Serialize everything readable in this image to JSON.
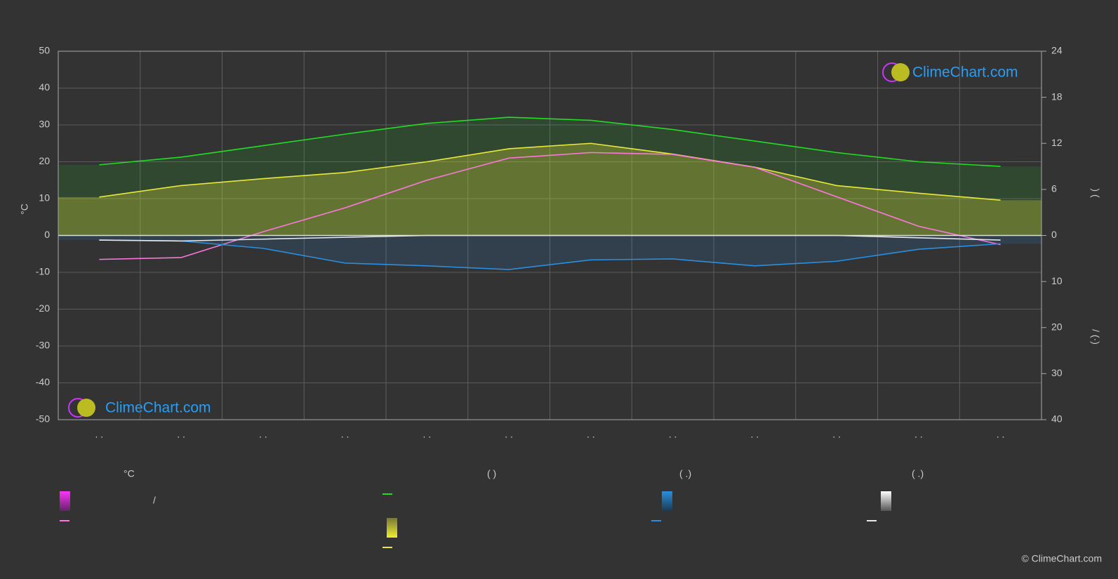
{
  "chart_data": {
    "type": "line",
    "y_label": "°C",
    "y2_label": ")        (",
    "y3_label": "/      (·)",
    "categories": [
      ". .",
      ". .",
      ". .",
      ". .",
      ". .",
      ". .",
      ". .",
      ". .",
      ". .",
      ". .",
      ". .",
      ". ."
    ],
    "ylim": [
      -50,
      50
    ],
    "yticks": [
      -50,
      -40,
      -30,
      -20,
      -10,
      0,
      10,
      20,
      30,
      40,
      50
    ],
    "y2lim": [
      0,
      24
    ],
    "y2ticks": [
      0,
      6,
      12,
      18,
      24
    ],
    "y3lim": [
      0,
      40
    ],
    "y3ticks": [
      10,
      20,
      30,
      40
    ],
    "grid": true,
    "series": [
      {
        "color": "#22dd22",
        "axis": "y2",
        "values": [
          9.2,
          10.2,
          11.7,
          13.2,
          14.6,
          15.4,
          15.0,
          13.8,
          12.3,
          10.8,
          9.6,
          9.0
        ]
      },
      {
        "color": "#e8e83a",
        "axis": "y2",
        "values": [
          5.0,
          6.5,
          7.4,
          8.2,
          9.6,
          11.3,
          12.0,
          10.6,
          8.9,
          6.5,
          5.5,
          4.6
        ]
      },
      {
        "color": "#ff77dd",
        "values": [
          -6.5,
          -6,
          1,
          7.5,
          15,
          21,
          22.5,
          22,
          18.5,
          10.5,
          2.5,
          -2.5
        ]
      },
      {
        "color": "#2a8fe0",
        "axis": "y3",
        "values": [
          1.0,
          1.2,
          2.8,
          6.0,
          6.6,
          7.4,
          5.3,
          5.1,
          6.6,
          5.6,
          3.0,
          1.8
        ]
      },
      {
        "color": "#e8e8e8",
        "axis": "y3",
        "values": [
          1.0,
          1.2,
          0.8,
          0.4,
          0,
          0,
          0,
          0,
          0,
          0,
          0.5,
          1.0
        ]
      }
    ],
    "legend_headers": [
      "°C",
      "(            )",
      "(    .)",
      "(    .)"
    ],
    "legend_separator": "/",
    "watermark": "ClimeChart.com",
    "copyright": "© ClimeChart.com"
  }
}
